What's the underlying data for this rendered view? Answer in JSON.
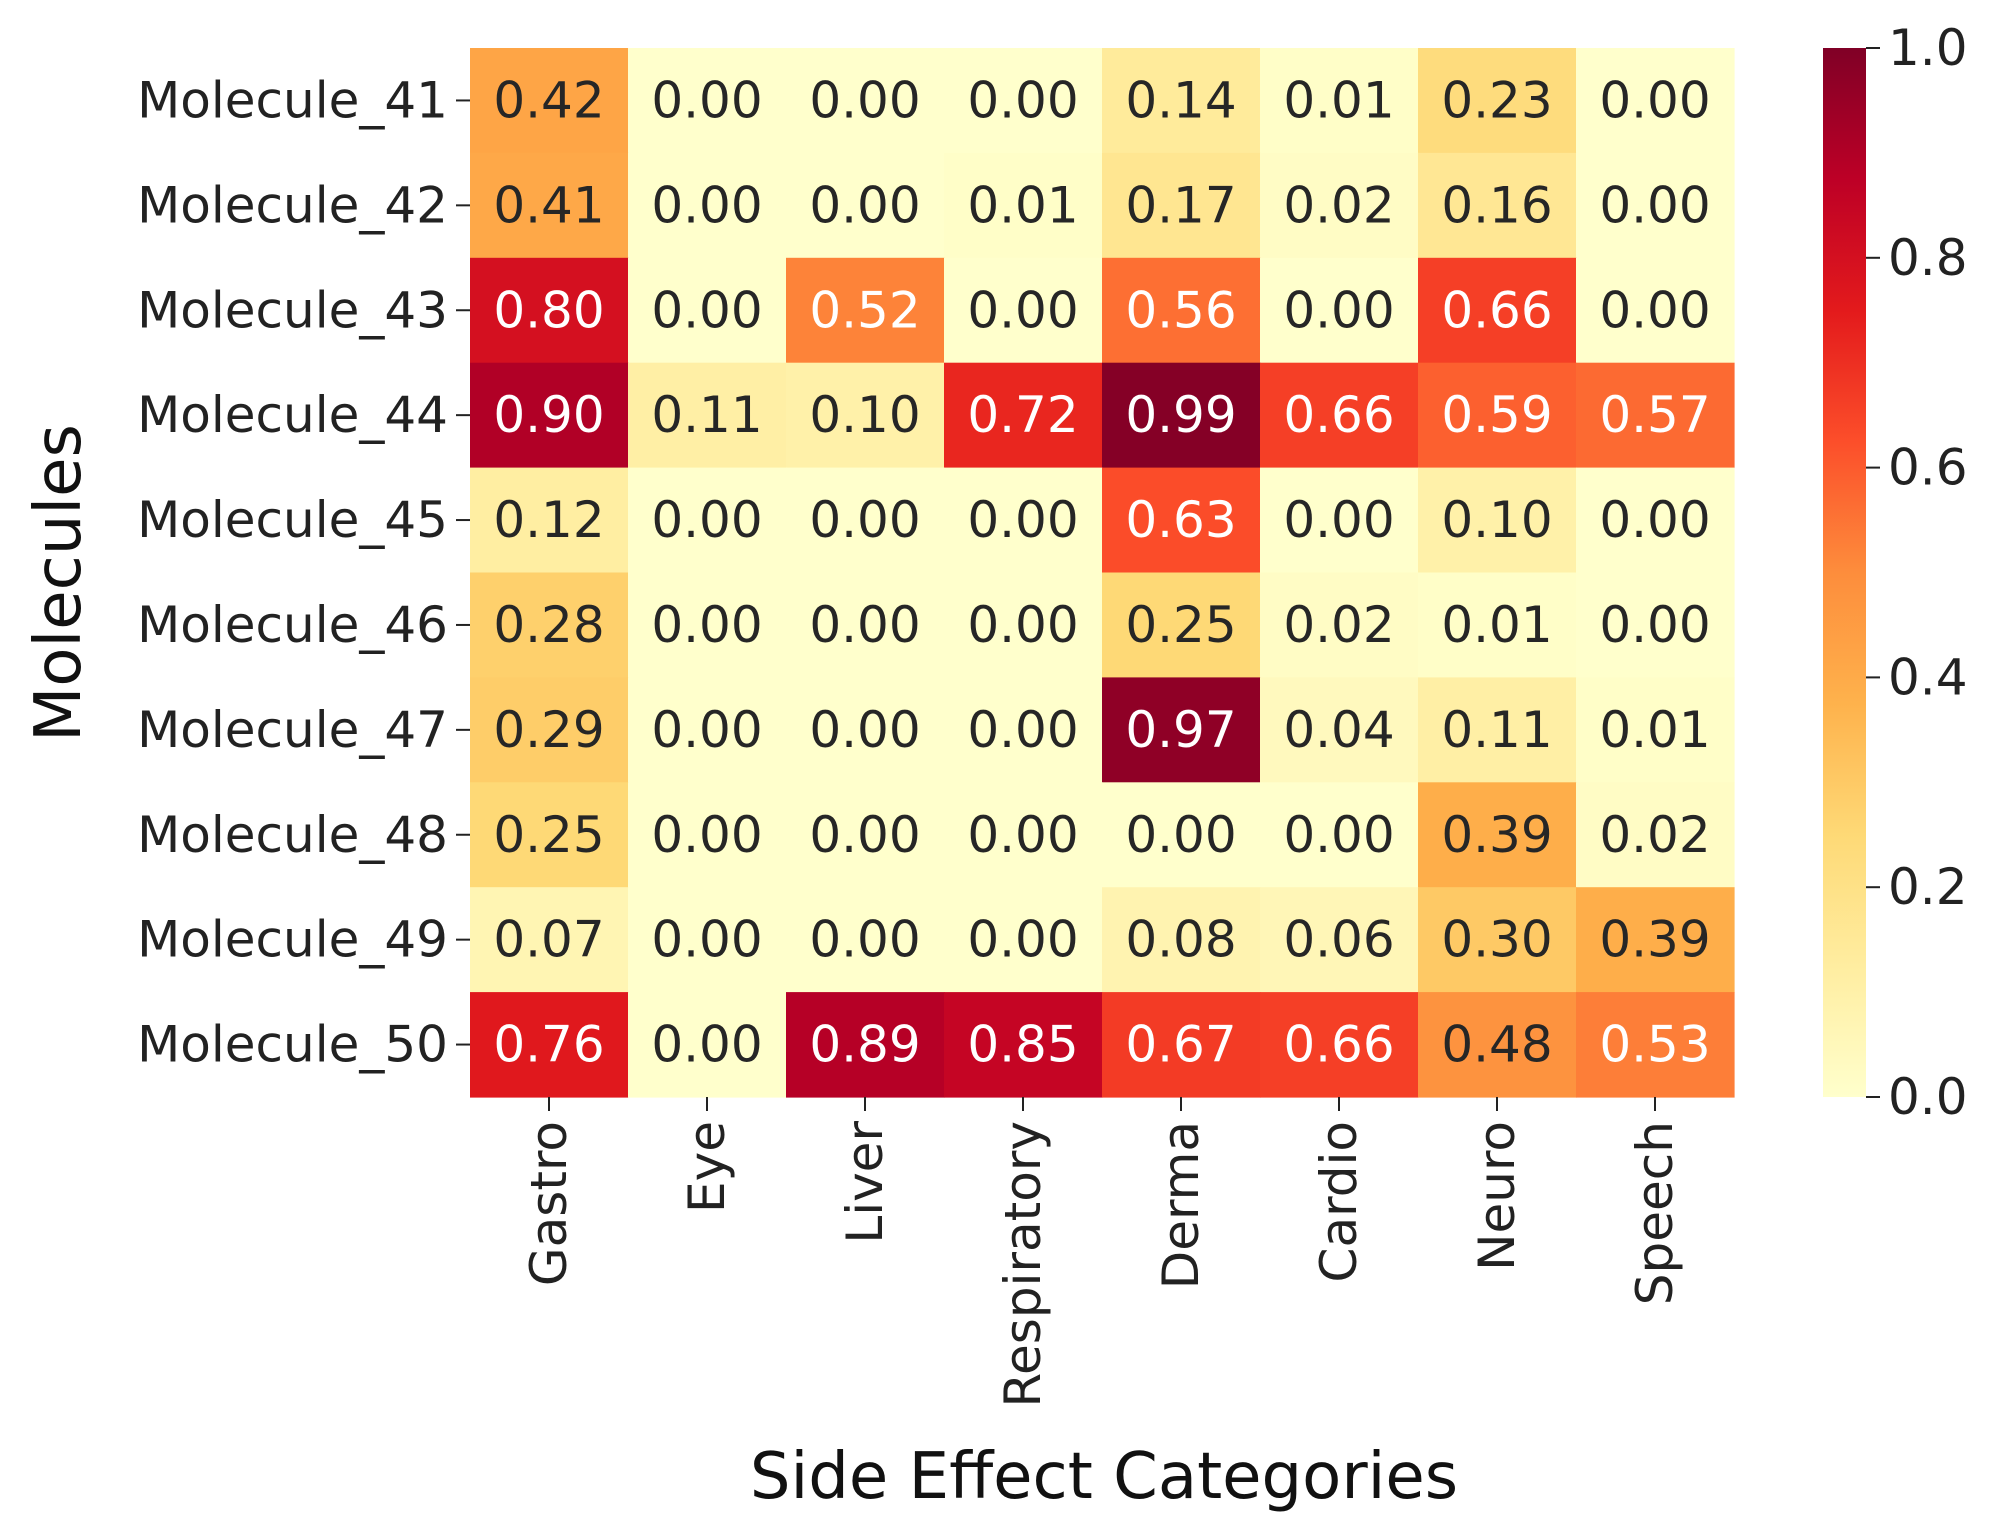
{
  "chart_data": {
    "type": "heatmap",
    "title": "",
    "xlabel": "Side Effect Categories",
    "ylabel": "Molecules",
    "colormap": "YlOrRd",
    "x_categories": [
      "Gastro",
      "Eye",
      "Liver",
      "Respiratory",
      "Derma",
      "Cardio",
      "Neuro",
      "Speech"
    ],
    "y_categories": [
      "Molecule_41",
      "Molecule_42",
      "Molecule_43",
      "Molecule_44",
      "Molecule_45",
      "Molecule_46",
      "Molecule_47",
      "Molecule_48",
      "Molecule_49",
      "Molecule_50"
    ],
    "values": [
      [
        0.42,
        0.0,
        0.0,
        0.0,
        0.14,
        0.01,
        0.23,
        0.0
      ],
      [
        0.41,
        0.0,
        0.0,
        0.01,
        0.17,
        0.02,
        0.16,
        0.0
      ],
      [
        0.8,
        0.0,
        0.52,
        0.0,
        0.56,
        0.0,
        0.66,
        0.0
      ],
      [
        0.9,
        0.11,
        0.1,
        0.72,
        0.99,
        0.66,
        0.59,
        0.57
      ],
      [
        0.12,
        0.0,
        0.0,
        0.0,
        0.63,
        0.0,
        0.1,
        0.0
      ],
      [
        0.28,
        0.0,
        0.0,
        0.0,
        0.25,
        0.02,
        0.01,
        0.0
      ],
      [
        0.29,
        0.0,
        0.0,
        0.0,
        0.97,
        0.04,
        0.11,
        0.01
      ],
      [
        0.25,
        0.0,
        0.0,
        0.0,
        0.0,
        0.0,
        0.39,
        0.02
      ],
      [
        0.07,
        0.0,
        0.0,
        0.0,
        0.08,
        0.06,
        0.3,
        0.39
      ],
      [
        0.76,
        0.0,
        0.89,
        0.85,
        0.67,
        0.66,
        0.48,
        0.53
      ]
    ],
    "value_format": "0.00",
    "colorbar": {
      "range": [
        0.0,
        1.0
      ],
      "ticks": [
        0.0,
        0.2,
        0.4,
        0.6,
        0.8,
        1.0
      ],
      "tick_labels": [
        "0.0",
        "0.2",
        "0.4",
        "0.6",
        "0.8",
        "1.0"
      ]
    }
  }
}
